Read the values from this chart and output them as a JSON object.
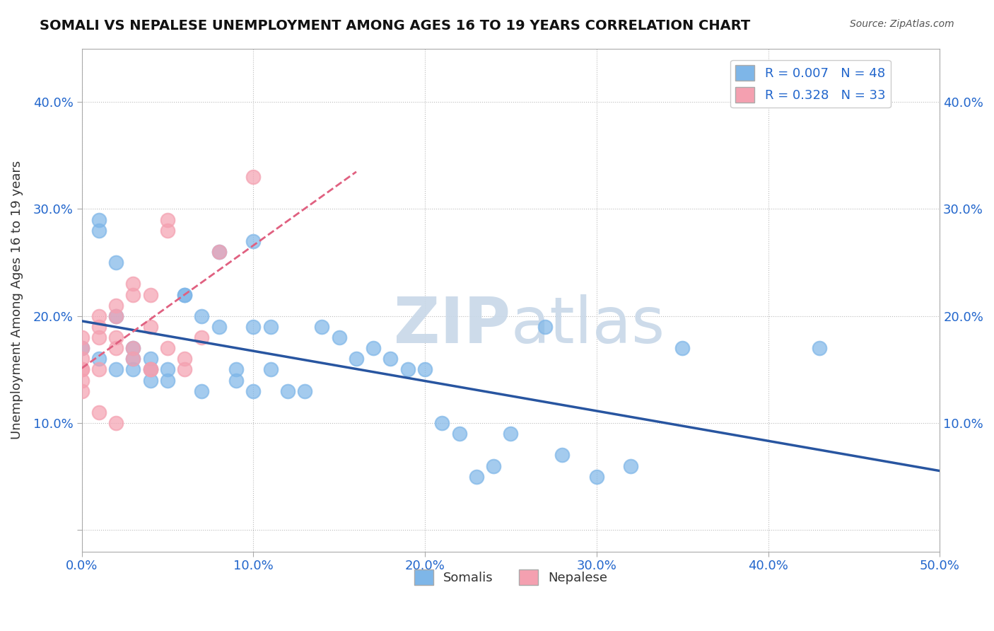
{
  "title": "SOMALI VS NEPALESE UNEMPLOYMENT AMONG AGES 16 TO 19 YEARS CORRELATION CHART",
  "source": "Source: ZipAtlas.com",
  "ylabel": "Unemployment Among Ages 16 to 19 years",
  "xlim": [
    0.0,
    0.5
  ],
  "ylim": [
    -0.02,
    0.45
  ],
  "xticks": [
    0.0,
    0.1,
    0.2,
    0.3,
    0.4,
    0.5
  ],
  "yticks": [
    0.0,
    0.1,
    0.2,
    0.3,
    0.4
  ],
  "xtick_labels": [
    "0.0%",
    "10.0%",
    "20.0%",
    "30.0%",
    "40.0%",
    "50.0%"
  ],
  "ytick_labels": [
    "",
    "10.0%",
    "20.0%",
    "30.0%",
    "40.0%"
  ],
  "legend1_label": "R = 0.007   N = 48",
  "legend2_label": "R = 0.328   N = 33",
  "legend_bottom_label1": "Somalis",
  "legend_bottom_label2": "Nepalese",
  "somali_color": "#7EB6E8",
  "nepalese_color": "#F4A0B0",
  "trend_somali_color": "#2855A0",
  "trend_nepalese_color": "#E06080",
  "watermark_color": "#C8D8E8",
  "somali_x": [
    0.0,
    0.01,
    0.01,
    0.01,
    0.02,
    0.02,
    0.02,
    0.03,
    0.03,
    0.03,
    0.04,
    0.04,
    0.04,
    0.05,
    0.05,
    0.06,
    0.06,
    0.07,
    0.07,
    0.08,
    0.08,
    0.09,
    0.09,
    0.1,
    0.1,
    0.1,
    0.11,
    0.11,
    0.12,
    0.13,
    0.14,
    0.15,
    0.16,
    0.17,
    0.18,
    0.19,
    0.2,
    0.21,
    0.22,
    0.23,
    0.24,
    0.25,
    0.27,
    0.28,
    0.3,
    0.32,
    0.35,
    0.43
  ],
  "somali_y": [
    0.17,
    0.29,
    0.28,
    0.16,
    0.25,
    0.2,
    0.15,
    0.17,
    0.16,
    0.15,
    0.16,
    0.15,
    0.14,
    0.14,
    0.15,
    0.22,
    0.22,
    0.2,
    0.13,
    0.26,
    0.19,
    0.15,
    0.14,
    0.27,
    0.19,
    0.13,
    0.19,
    0.15,
    0.13,
    0.13,
    0.19,
    0.18,
    0.16,
    0.17,
    0.16,
    0.15,
    0.15,
    0.1,
    0.09,
    0.05,
    0.06,
    0.09,
    0.19,
    0.07,
    0.05,
    0.06,
    0.17,
    0.17
  ],
  "nepalese_x": [
    0.0,
    0.0,
    0.0,
    0.0,
    0.0,
    0.0,
    0.0,
    0.01,
    0.01,
    0.01,
    0.01,
    0.01,
    0.02,
    0.02,
    0.02,
    0.02,
    0.02,
    0.03,
    0.03,
    0.03,
    0.03,
    0.04,
    0.04,
    0.04,
    0.04,
    0.05,
    0.05,
    0.05,
    0.06,
    0.06,
    0.07,
    0.08,
    0.1
  ],
  "nepalese_y": [
    0.18,
    0.17,
    0.16,
    0.15,
    0.15,
    0.14,
    0.13,
    0.2,
    0.19,
    0.18,
    0.15,
    0.11,
    0.21,
    0.2,
    0.18,
    0.17,
    0.1,
    0.23,
    0.22,
    0.17,
    0.16,
    0.22,
    0.19,
    0.15,
    0.15,
    0.29,
    0.28,
    0.17,
    0.16,
    0.15,
    0.18,
    0.26,
    0.33
  ]
}
